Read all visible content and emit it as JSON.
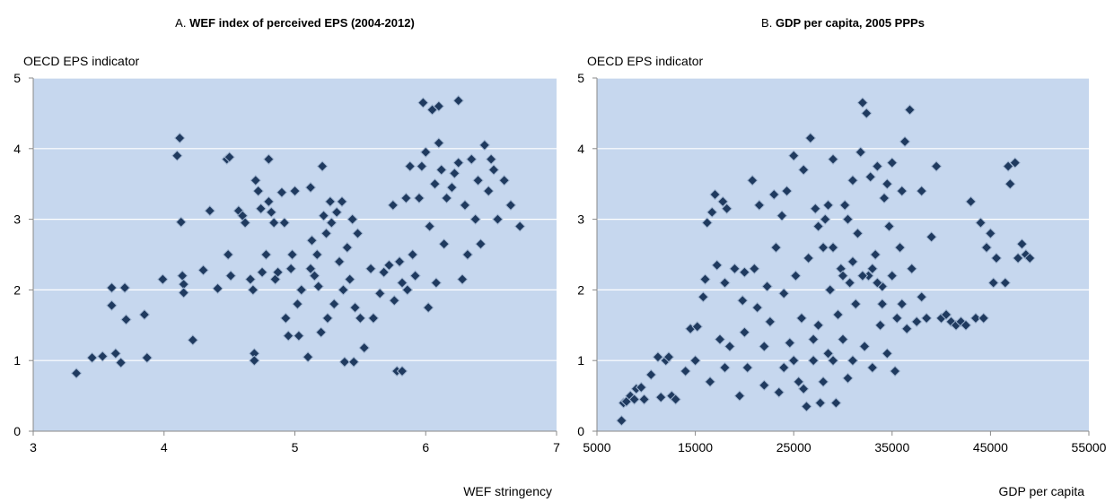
{
  "chart_data": [
    {
      "type": "scatter",
      "panel": "A.",
      "title": "WEF index of perceived EPS (2004-2012)",
      "y_label": "OECD EPS indicator",
      "x_label": "WEF stringency",
      "color": "#1f3a5f",
      "xlim": [
        3,
        7
      ],
      "xticks": [
        3,
        4,
        5,
        6,
        7
      ],
      "ylim": [
        0,
        5
      ],
      "yticks": [
        0,
        1,
        2,
        3,
        4,
        5
      ],
      "grid": true,
      "x": [
        3.33,
        3.45,
        3.53,
        3.6,
        3.6,
        3.63,
        3.67,
        3.7,
        3.71,
        3.85,
        3.87,
        3.99,
        4.1,
        4.12,
        4.13,
        4.14,
        4.15,
        4.15,
        4.22,
        4.3,
        4.35,
        4.41,
        4.48,
        4.5,
        4.49,
        4.51,
        4.57,
        4.6,
        4.62,
        4.66,
        4.68,
        4.69,
        4.69,
        4.7,
        4.72,
        4.74,
        4.75,
        4.78,
        4.8,
        4.8,
        4.82,
        4.84,
        4.85,
        4.87,
        4.9,
        4.92,
        4.93,
        4.95,
        4.97,
        4.98,
        5.0,
        5.02,
        5.03,
        5.05,
        5.1,
        5.12,
        5.12,
        5.13,
        5.15,
        5.17,
        5.18,
        5.2,
        5.21,
        5.22,
        5.24,
        5.25,
        5.27,
        5.28,
        5.3,
        5.32,
        5.34,
        5.36,
        5.37,
        5.38,
        5.4,
        5.42,
        5.44,
        5.45,
        5.46,
        5.48,
        5.5,
        5.53,
        5.58,
        5.6,
        5.65,
        5.68,
        5.72,
        5.75,
        5.76,
        5.78,
        5.82,
        5.8,
        5.82,
        5.85,
        5.86,
        5.88,
        5.9,
        5.92,
        5.95,
        5.97,
        5.98,
        6.0,
        6.02,
        6.03,
        6.05,
        6.07,
        6.08,
        6.1,
        6.1,
        6.12,
        6.14,
        6.16,
        6.2,
        6.22,
        6.25,
        6.25,
        6.28,
        6.3,
        6.32,
        6.35,
        6.38,
        6.4,
        6.42,
        6.45,
        6.48,
        6.5,
        6.52,
        6.55,
        6.6,
        6.65,
        6.72
      ],
      "values": [
        0.82,
        1.04,
        1.06,
        1.78,
        2.03,
        1.1,
        0.97,
        2.03,
        1.58,
        1.65,
        1.04,
        2.15,
        3.9,
        4.15,
        2.96,
        2.2,
        2.08,
        1.96,
        1.29,
        2.28,
        3.12,
        2.02,
        3.85,
        3.88,
        2.5,
        2.2,
        3.12,
        3.05,
        2.95,
        2.15,
        2.0,
        1.1,
        1.0,
        3.55,
        3.4,
        3.15,
        2.25,
        2.5,
        3.85,
        3.25,
        3.1,
        2.95,
        2.15,
        2.25,
        3.38,
        2.95,
        1.6,
        1.35,
        2.3,
        2.5,
        3.4,
        1.8,
        1.35,
        2.0,
        1.05,
        3.45,
        2.3,
        2.7,
        2.2,
        2.5,
        2.05,
        1.4,
        3.75,
        3.05,
        2.8,
        1.6,
        3.25,
        2.95,
        1.8,
        3.1,
        2.4,
        3.25,
        2.0,
        0.98,
        2.6,
        2.15,
        3.0,
        0.98,
        1.75,
        2.8,
        1.6,
        1.18,
        2.3,
        1.6,
        1.95,
        2.25,
        2.35,
        3.2,
        1.85,
        0.85,
        0.85,
        2.4,
        2.1,
        3.3,
        2.0,
        3.75,
        2.5,
        2.2,
        3.3,
        3.75,
        4.65,
        3.95,
        1.75,
        2.9,
        4.55,
        3.5,
        2.1,
        4.6,
        4.08,
        3.7,
        2.65,
        3.3,
        3.45,
        3.65,
        3.8,
        4.68,
        2.15,
        3.2,
        2.5,
        3.85,
        3.0,
        3.55,
        2.65,
        4.05,
        3.4,
        3.85,
        3.7,
        3.0,
        3.55,
        3.2,
        2.9
      ]
    },
    {
      "type": "scatter",
      "panel": "B.",
      "title": "GDP per capita, 2005 PPPs",
      "y_label": "OECD EPS indicator",
      "x_label": "GDP per capita",
      "color": "#1f3a5f",
      "xlim": [
        5000,
        55000
      ],
      "xticks": [
        5000,
        15000,
        25000,
        35000,
        45000,
        55000
      ],
      "ylim": [
        0,
        5
      ],
      "yticks": [
        0,
        1,
        2,
        3,
        4,
        5
      ],
      "grid": true,
      "x": [
        7500,
        7700,
        8000,
        8400,
        8800,
        9000,
        9500,
        9800,
        10500,
        11200,
        11500,
        12000,
        12300,
        12600,
        13000,
        14000,
        14500,
        15000,
        15200,
        15800,
        16000,
        16200,
        16500,
        16700,
        17000,
        17200,
        17500,
        17800,
        18000,
        18200,
        18500,
        19000,
        19500,
        19800,
        20000,
        20300,
        20800,
        21000,
        21300,
        21500,
        22000,
        22300,
        22600,
        23000,
        23200,
        23500,
        23800,
        24000,
        24300,
        24600,
        25000,
        25200,
        25500,
        25800,
        26000,
        26300,
        26500,
        26700,
        27000,
        27200,
        27500,
        27700,
        28000,
        28200,
        28500,
        28700,
        29000,
        29300,
        29500,
        29800,
        30000,
        30200,
        30500,
        30700,
        31000,
        31300,
        31500,
        31800,
        32000,
        32200,
        32400,
        32600,
        32800,
        33000,
        33300,
        33500,
        33800,
        34000,
        34200,
        34500,
        34700,
        35000,
        35300,
        35500,
        35800,
        36000,
        36300,
        36500,
        36800,
        37000,
        37500,
        38000,
        38500,
        39000,
        39500,
        40000,
        40500,
        41000,
        41500,
        42000,
        42500,
        43000,
        43500,
        44000,
        44300,
        44600,
        45000,
        45300,
        45600,
        46500,
        46800,
        47000,
        47500,
        47800,
        48200,
        48600,
        49000,
        25000,
        26000,
        27000,
        28000,
        29000,
        30000,
        31000,
        32000,
        33000,
        34000,
        35000,
        27500,
        29000,
        31000,
        33500,
        24000,
        22000,
        20000,
        18000,
        36000,
        38000,
        30500,
        28500,
        34500
      ],
      "values": [
        0.15,
        0.4,
        0.42,
        0.5,
        0.45,
        0.6,
        0.62,
        0.45,
        0.8,
        1.05,
        0.48,
        1.0,
        1.05,
        0.5,
        0.45,
        0.85,
        1.45,
        1.0,
        1.48,
        1.9,
        2.15,
        2.95,
        0.7,
        3.1,
        3.35,
        2.35,
        1.3,
        3.25,
        2.1,
        3.15,
        1.2,
        2.3,
        0.5,
        1.85,
        2.25,
        0.9,
        3.55,
        2.3,
        1.75,
        3.2,
        0.65,
        2.05,
        1.55,
        3.35,
        2.6,
        0.55,
        3.05,
        1.95,
        3.4,
        1.25,
        3.9,
        2.2,
        0.7,
        1.6,
        3.7,
        0.35,
        2.45,
        4.15,
        1.0,
        3.15,
        1.5,
        0.4,
        2.6,
        3.0,
        1.1,
        2.0,
        3.85,
        0.4,
        1.65,
        2.3,
        1.3,
        3.2,
        0.75,
        2.1,
        3.55,
        1.8,
        2.8,
        3.95,
        4.65,
        1.2,
        4.5,
        2.2,
        3.6,
        0.9,
        2.5,
        3.75,
        1.5,
        2.05,
        3.3,
        1.1,
        2.9,
        3.8,
        0.85,
        1.6,
        2.6,
        3.4,
        4.1,
        1.45,
        4.55,
        2.3,
        1.55,
        3.4,
        1.6,
        2.75,
        3.75,
        1.6,
        1.65,
        1.55,
        1.5,
        1.55,
        1.5,
        3.25,
        1.6,
        2.95,
        1.6,
        2.6,
        2.8,
        2.1,
        2.45,
        2.1,
        3.75,
        3.5,
        3.8,
        2.45,
        2.65,
        2.5,
        2.45,
        1.0,
        0.6,
        1.3,
        0.7,
        1.0,
        2.2,
        1.0,
        2.2,
        2.3,
        1.8,
        2.2,
        2.9,
        2.6,
        2.4,
        2.1,
        0.9,
        1.2,
        1.4,
        0.9,
        1.8,
        1.9,
        3.0,
        3.2,
        3.5
      ]
    }
  ]
}
